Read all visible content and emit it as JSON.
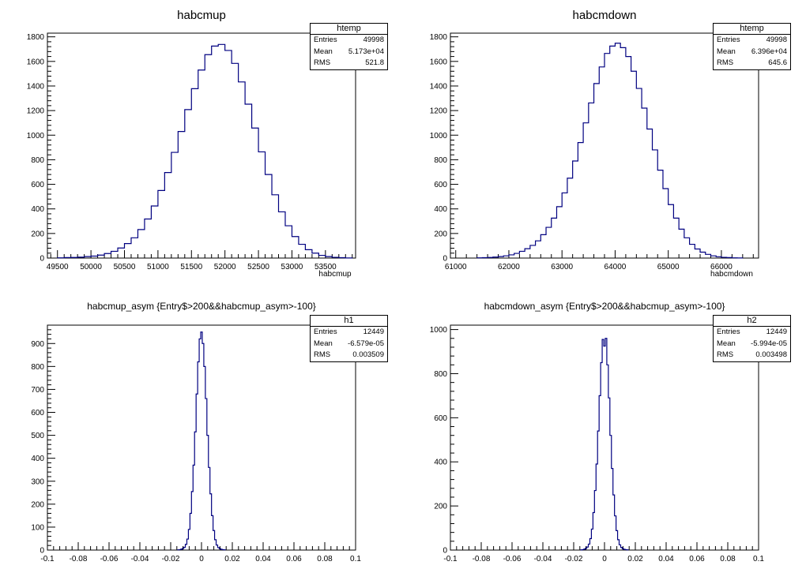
{
  "chart_data": [
    {
      "type": "histogram",
      "title": "habcmup",
      "xlabel": "habcmup",
      "ylabel": "",
      "xlim": [
        49350,
        53950
      ],
      "ylim": [
        0,
        1830
      ],
      "xticks": [
        49500,
        50000,
        50500,
        51000,
        51500,
        52000,
        52500,
        53000,
        53500
      ],
      "xtick_labels": [
        "49500",
        "50000",
        "50500",
        "51000",
        "51500",
        "52000",
        "52500",
        "53000",
        "53500"
      ],
      "yticks": [
        0,
        200,
        400,
        600,
        800,
        1000,
        1200,
        1400,
        1600,
        1800
      ],
      "ytick_labels": [
        "0",
        "200",
        "400",
        "600",
        "800",
        "1000",
        "1200",
        "1400",
        "1600",
        "1800"
      ],
      "line_color": "#000080",
      "stats": {
        "name": "htemp",
        "entries_label": "Entries",
        "entries": "49998",
        "mean_label": "Mean",
        "mean": "5.173e+04",
        "rms_label": "RMS",
        "rms": "521.8"
      },
      "bins": {
        "x": [
          49550,
          49650,
          49750,
          49850,
          49950,
          50050,
          50150,
          50250,
          50350,
          50450,
          50550,
          50650,
          50750,
          50850,
          50950,
          51050,
          51150,
          51250,
          51350,
          51450,
          51550,
          51650,
          51750,
          51850,
          51950,
          52050,
          52150,
          52250,
          52350,
          52450,
          52550,
          52650,
          52750,
          52850,
          52950,
          53050,
          53150,
          53250,
          53350,
          53450,
          53550,
          53650,
          53750,
          53850
        ],
        "y": [
          2,
          4,
          5,
          7,
          12,
          16,
          24,
          37,
          55,
          82,
          118,
          165,
          232,
          318,
          424,
          550,
          696,
          860,
          1030,
          1208,
          1378,
          1530,
          1655,
          1725,
          1738,
          1689,
          1584,
          1433,
          1252,
          1058,
          864,
          680,
          515,
          376,
          263,
          175,
          112,
          68,
          40,
          22,
          12,
          6,
          3,
          1
        ]
      }
    },
    {
      "type": "histogram",
      "title": "habcmdown",
      "xlabel": "habcmdown",
      "ylabel": "",
      "xlim": [
        60900,
        66700
      ],
      "ylim": [
        0,
        1830
      ],
      "xticks": [
        61000,
        62000,
        63000,
        64000,
        65000,
        66000
      ],
      "xtick_labels": [
        "61000",
        "62000",
        "63000",
        "64000",
        "65000",
        "66000"
      ],
      "yticks": [
        0,
        200,
        400,
        600,
        800,
        1000,
        1200,
        1400,
        1600,
        1800
      ],
      "ytick_labels": [
        "0",
        "200",
        "400",
        "600",
        "800",
        "1000",
        "1200",
        "1400",
        "1600",
        "1800"
      ],
      "line_color": "#000080",
      "stats": {
        "name": "htemp",
        "entries_label": "Entries",
        "entries": "49998",
        "mean_label": "Mean",
        "mean": "6.396e+04",
        "rms_label": "RMS",
        "rms": "645.6"
      },
      "bins": {
        "x": [
          61450,
          61550,
          61650,
          61750,
          61850,
          61950,
          62050,
          62150,
          62250,
          62350,
          62450,
          62550,
          62650,
          62750,
          62850,
          62950,
          63050,
          63150,
          63250,
          63350,
          63450,
          63550,
          63650,
          63750,
          63850,
          63950,
          64050,
          64150,
          64250,
          64350,
          64450,
          64550,
          64650,
          64750,
          64850,
          64950,
          65050,
          65150,
          65250,
          65350,
          65450,
          65550,
          65650,
          65750,
          65850,
          65950,
          66050,
          66150,
          66250,
          66350
        ],
        "y": [
          2,
          3,
          5,
          8,
          12,
          18,
          26,
          38,
          55,
          76,
          103,
          140,
          190,
          250,
          325,
          418,
          530,
          650,
          790,
          940,
          1100,
          1262,
          1420,
          1555,
          1665,
          1725,
          1748,
          1712,
          1640,
          1520,
          1380,
          1220,
          1050,
          880,
          715,
          565,
          435,
          325,
          235,
          165,
          112,
          74,
          48,
          30,
          18,
          11,
          6,
          4,
          2,
          1
        ]
      }
    },
    {
      "type": "histogram",
      "title": "habcmup_asym {Entry$>200&&habcmup_asym>-100}",
      "xlabel": "",
      "ylabel": "",
      "xlim": [
        -0.1,
        0.1
      ],
      "ylim": [
        0,
        980
      ],
      "xticks": [
        -0.1,
        -0.08,
        -0.06,
        -0.04,
        -0.02,
        0,
        0.02,
        0.04,
        0.06,
        0.08,
        0.1
      ],
      "xtick_labels": [
        "-0.1",
        "-0.08",
        "-0.06",
        "-0.04",
        "-0.02",
        "0",
        "0.02",
        "0.04",
        "0.06",
        "0.08",
        "0.1"
      ],
      "yticks": [
        0,
        100,
        200,
        300,
        400,
        500,
        600,
        700,
        800,
        900
      ],
      "ytick_labels": [
        "0",
        "100",
        "200",
        "300",
        "400",
        "500",
        "600",
        "700",
        "800",
        "900"
      ],
      "line_color": "#000080",
      "stats": {
        "name": "h1",
        "entries_label": "Entries",
        "entries": "12449",
        "mean_label": "Mean",
        "mean": "-6.579e-05",
        "rms_label": "RMS",
        "rms": "0.003509"
      },
      "bins": {
        "x": [
          -0.015,
          -0.014,
          -0.013,
          -0.012,
          -0.011,
          -0.01,
          -0.009,
          -0.008,
          -0.007,
          -0.006,
          -0.005,
          -0.004,
          -0.003,
          -0.002,
          -0.001,
          0,
          0.001,
          0.002,
          0.003,
          0.004,
          0.005,
          0.006,
          0.007,
          0.008,
          0.009,
          0.01,
          0.011,
          0.012,
          0.013,
          0.014,
          0.015
        ],
        "y": [
          1,
          2,
          4,
          7,
          12,
          25,
          48,
          90,
          160,
          255,
          370,
          515,
          680,
          820,
          920,
          950,
          900,
          800,
          660,
          500,
          360,
          245,
          150,
          85,
          45,
          22,
          11,
          6,
          3,
          2,
          1
        ]
      }
    },
    {
      "type": "histogram",
      "title": "habcmdown_asym {Entry$>200&&habcmup_asym>-100}",
      "xlabel": "",
      "ylabel": "",
      "xlim": [
        -0.1,
        0.1
      ],
      "ylim": [
        0,
        1020
      ],
      "xticks": [
        -0.1,
        -0.08,
        -0.06,
        -0.04,
        -0.02,
        0,
        0.02,
        0.04,
        0.06,
        0.08,
        0.1
      ],
      "xtick_labels": [
        "-0.1",
        "-0.08",
        "-0.06",
        "-0.04",
        "-0.02",
        "0",
        "0.02",
        "0.04",
        "0.06",
        "0.08",
        "0.1"
      ],
      "yticks": [
        0,
        200,
        400,
        600,
        800,
        1000
      ],
      "ytick_labels": [
        "0",
        "200",
        "400",
        "600",
        "800",
        "1000"
      ],
      "line_color": "#000080",
      "stats": {
        "name": "h2",
        "entries_label": "Entries",
        "entries": "12449",
        "mean_label": "Mean",
        "mean": "-5.994e-05",
        "rms_label": "RMS",
        "rms": "0.003498"
      },
      "bins": {
        "x": [
          -0.015,
          -0.014,
          -0.013,
          -0.012,
          -0.011,
          -0.01,
          -0.009,
          -0.008,
          -0.007,
          -0.006,
          -0.005,
          -0.004,
          -0.003,
          -0.002,
          -0.001,
          0,
          0.001,
          0.002,
          0.003,
          0.004,
          0.005,
          0.006,
          0.007,
          0.008,
          0.009,
          0.01,
          0.011,
          0.012,
          0.013,
          0.014,
          0.015
        ],
        "y": [
          1,
          2,
          4,
          8,
          14,
          27,
          52,
          95,
          170,
          270,
          390,
          540,
          700,
          850,
          955,
          925,
          960,
          840,
          690,
          520,
          370,
          250,
          155,
          88,
          47,
          24,
          12,
          6,
          3,
          2,
          1
        ]
      }
    }
  ]
}
